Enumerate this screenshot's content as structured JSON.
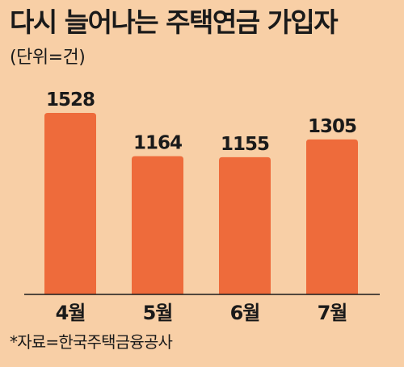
{
  "title": "다시 늘어나는 주택연금 가입자",
  "unit_label": "(단위=건)",
  "source": "*자료=한국주택금융공사",
  "colors": {
    "background": "#f8cfa6",
    "bar": "#ee6b3b",
    "axis": "#1a1a1a",
    "text": "#1a1a1a"
  },
  "chart_data": {
    "type": "bar",
    "title": "다시 늘어나는 주택연금 가입자",
    "ylabel": "(단위=건)",
    "categories": [
      "4월",
      "5월",
      "6월",
      "7월"
    ],
    "values": [
      1528,
      1164,
      1155,
      1305
    ],
    "data_labels": [
      "1528",
      "1164",
      "1155",
      "1305"
    ],
    "ylim": [
      0,
      1528
    ],
    "grid": false,
    "legend": "none"
  }
}
